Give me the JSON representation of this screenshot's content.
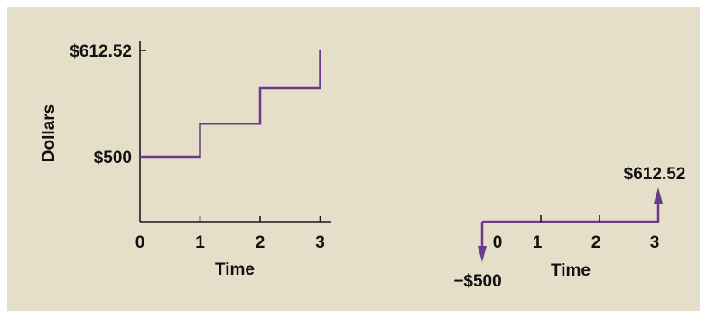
{
  "colors": {
    "background": "#e5dfc9",
    "axis": "#1a1a1a",
    "series": "#6b3a8c"
  },
  "chart_data": [
    {
      "type": "line",
      "step": true,
      "xlabel": "Time",
      "ylabel": "Dollars",
      "x_ticks": [
        "0",
        "1",
        "2",
        "3"
      ],
      "y_ticks": [
        {
          "value": 500,
          "label": "$500"
        },
        {
          "value": 612.52,
          "label": "$612.52"
        }
      ],
      "series": [
        {
          "x": [
            0,
            1,
            2,
            3
          ],
          "y": [
            500,
            535,
            572.5,
            612.52
          ]
        }
      ]
    },
    {
      "type": "timeline",
      "xlabel": "Time",
      "x_ticks": [
        "0",
        "1",
        "2",
        "3"
      ],
      "cash_flows": [
        {
          "time": 0,
          "amount": -500,
          "label": "−$500"
        },
        {
          "time": 3,
          "amount": 612.52,
          "label": "$612.52"
        }
      ]
    }
  ]
}
